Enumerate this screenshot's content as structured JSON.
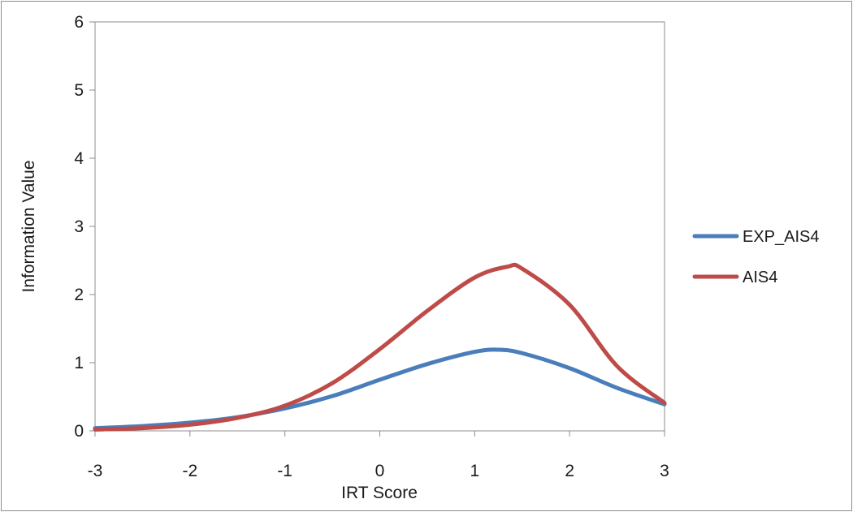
{
  "chart_data": {
    "type": "line",
    "xlabel": "IRT Score",
    "ylabel": "Information Value",
    "xlim": [
      -3,
      3
    ],
    "ylim": [
      0,
      6
    ],
    "x_ticks": [
      "-3",
      "-2",
      "-1",
      "0",
      "1",
      "2",
      "3"
    ],
    "y_ticks": [
      "0",
      "1",
      "2",
      "3",
      "4",
      "5",
      "6"
    ],
    "grid": false,
    "legend_position": "right",
    "series": [
      {
        "name": "EXP_AIS4",
        "color": "#4a7ebb",
        "points": [
          [
            -3.0,
            0.04
          ],
          [
            -2.5,
            0.07
          ],
          [
            -2.0,
            0.12
          ],
          [
            -1.5,
            0.2
          ],
          [
            -1.0,
            0.33
          ],
          [
            -0.5,
            0.51
          ],
          [
            0.0,
            0.75
          ],
          [
            0.5,
            0.98
          ],
          [
            1.0,
            1.16
          ],
          [
            1.25,
            1.19
          ],
          [
            1.5,
            1.14
          ],
          [
            2.0,
            0.92
          ],
          [
            2.5,
            0.63
          ],
          [
            3.0,
            0.39
          ]
        ]
      },
      {
        "name": "AIS4",
        "color": "#be4b48",
        "points": [
          [
            -3.0,
            0.02
          ],
          [
            -2.5,
            0.04
          ],
          [
            -2.0,
            0.09
          ],
          [
            -1.5,
            0.19
          ],
          [
            -1.0,
            0.37
          ],
          [
            -0.5,
            0.7
          ],
          [
            0.0,
            1.2
          ],
          [
            0.5,
            1.76
          ],
          [
            1.0,
            2.25
          ],
          [
            1.35,
            2.41
          ],
          [
            1.5,
            2.38
          ],
          [
            2.0,
            1.85
          ],
          [
            2.5,
            0.95
          ],
          [
            3.0,
            0.41
          ]
        ]
      }
    ]
  }
}
